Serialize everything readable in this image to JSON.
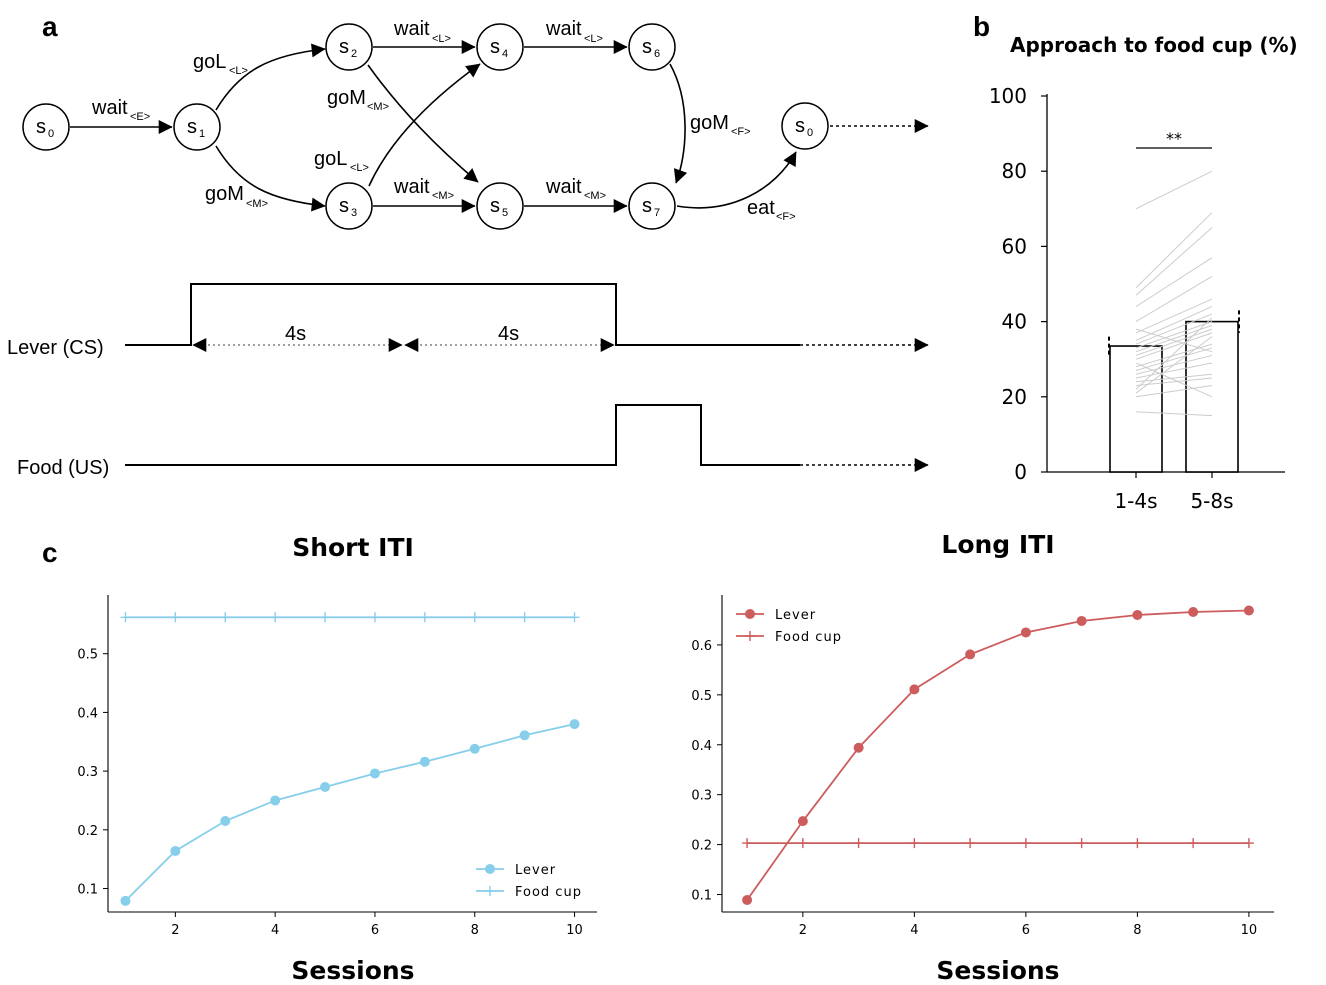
{
  "panels": {
    "a": "a",
    "b": "b",
    "c": "c"
  },
  "diagram": {
    "states": [
      {
        "id": "n0",
        "base": "s",
        "sub": "0"
      },
      {
        "id": "n1",
        "base": "s",
        "sub": "1"
      },
      {
        "id": "n2",
        "base": "s",
        "sub": "2"
      },
      {
        "id": "n3",
        "base": "s",
        "sub": "3"
      },
      {
        "id": "n4",
        "base": "s",
        "sub": "4"
      },
      {
        "id": "n5",
        "base": "s",
        "sub": "5"
      },
      {
        "id": "n6",
        "base": "s",
        "sub": "6"
      },
      {
        "id": "n7",
        "base": "s",
        "sub": "7"
      },
      {
        "id": "n8",
        "base": "s",
        "sub": "0"
      }
    ],
    "edges": [
      {
        "from": "s0",
        "to": "s1",
        "label": "wait",
        "sub": "<E>"
      },
      {
        "from": "s1",
        "to": "s2",
        "label": "goL",
        "sub": "<L>"
      },
      {
        "from": "s1",
        "to": "s3",
        "label": "goM",
        "sub": "<M>"
      },
      {
        "from": "s2",
        "to": "s4",
        "label": "wait",
        "sub": "<L>"
      },
      {
        "from": "s2",
        "to": "s5",
        "label": "goM",
        "sub": "<M>"
      },
      {
        "from": "s3",
        "to": "s4",
        "label": "goL",
        "sub": "<L>"
      },
      {
        "from": "s3",
        "to": "s5",
        "label": "wait",
        "sub": "<M>"
      },
      {
        "from": "s4",
        "to": "s6",
        "label": "wait",
        "sub": "<L>"
      },
      {
        "from": "s5",
        "to": "s7",
        "label": "wait",
        "sub": "<M>"
      },
      {
        "from": "s6",
        "to": "s7",
        "label": "goM",
        "sub": "<F>"
      },
      {
        "from": "s7",
        "to": "s0",
        "label": "eat",
        "sub": "<F>"
      }
    ]
  },
  "timeline": {
    "lever_label": "Lever (CS)",
    "food_label": "Food (US)",
    "interval_1": "4s",
    "interval_2": "4s"
  },
  "chart_data": [
    {
      "type": "bar",
      "title": "Approach to food cup (%)",
      "categories": [
        "1-4s",
        "5-8s"
      ],
      "values": [
        33.5,
        40.0
      ],
      "errors": [
        2.5,
        3.0
      ],
      "ylim": [
        0,
        100
      ],
      "yticks": [
        0,
        20,
        40,
        60,
        80,
        100
      ],
      "significance": "**",
      "individual_lines": [
        [
          70,
          80
        ],
        [
          49,
          69
        ],
        [
          47,
          65
        ],
        [
          44,
          57
        ],
        [
          40,
          52
        ],
        [
          37,
          46
        ],
        [
          35,
          44
        ],
        [
          34,
          42
        ],
        [
          33,
          40
        ],
        [
          32,
          39
        ],
        [
          31,
          38
        ],
        [
          30,
          37
        ],
        [
          28,
          34
        ],
        [
          27,
          33
        ],
        [
          26,
          31
        ],
        [
          25,
          29
        ],
        [
          24,
          26
        ],
        [
          23,
          25
        ],
        [
          22,
          41
        ],
        [
          21,
          36
        ],
        [
          20,
          23
        ],
        [
          16,
          15
        ],
        [
          38,
          32
        ],
        [
          29,
          20
        ]
      ],
      "colors": {
        "bar": "#ffffff",
        "lines": "#cccccc"
      }
    },
    {
      "type": "line",
      "title": "Short ITI",
      "xlabel": "Sessions",
      "x": [
        1,
        2,
        3,
        4,
        5,
        6,
        7,
        8,
        9,
        10
      ],
      "xticks": [
        2,
        4,
        6,
        8,
        10
      ],
      "yticks": [
        0.1,
        0.2,
        0.3,
        0.4,
        0.5
      ],
      "ylim": [
        0.06,
        0.6
      ],
      "xlim": [
        0.65,
        10.45
      ],
      "legend_position": "lower-right",
      "series": [
        {
          "name": "Lever",
          "marker": "circle",
          "color": "#87ceeb",
          "values": [
            0.079,
            0.164,
            0.215,
            0.25,
            0.273,
            0.296,
            0.316,
            0.338,
            0.361,
            0.38
          ]
        },
        {
          "name": "Food cup",
          "marker": "plus",
          "color": "#87ceeb",
          "values": [
            0.562,
            0.562,
            0.562,
            0.562,
            0.562,
            0.562,
            0.562,
            0.562,
            0.562,
            0.562
          ]
        }
      ]
    },
    {
      "type": "line",
      "title": "Long ITI",
      "xlabel": "Sessions",
      "x": [
        1,
        2,
        3,
        4,
        5,
        6,
        7,
        8,
        9,
        10
      ],
      "xticks": [
        2,
        4,
        6,
        8,
        10
      ],
      "yticks": [
        0.1,
        0.2,
        0.3,
        0.4,
        0.5,
        0.6
      ],
      "ylim": [
        0.065,
        0.7
      ],
      "xlim": [
        0.55,
        10.45
      ],
      "legend_position": "upper-left",
      "series": [
        {
          "name": "Lever",
          "marker": "circle",
          "color": "#cd5c5c",
          "values": [
            0.089,
            0.247,
            0.394,
            0.511,
            0.581,
            0.625,
            0.648,
            0.66,
            0.666,
            0.669
          ]
        },
        {
          "name": "Food cup",
          "marker": "plus",
          "color": "#cd5c5c",
          "values": [
            0.203,
            0.203,
            0.203,
            0.203,
            0.203,
            0.203,
            0.203,
            0.203,
            0.203,
            0.203
          ]
        }
      ]
    }
  ]
}
